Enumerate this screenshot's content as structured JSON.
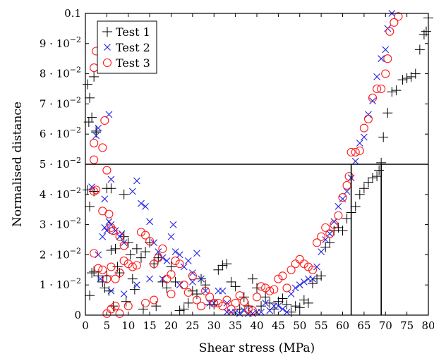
{
  "chart_data": {
    "type": "scatter",
    "xlabel": "Shear stress (MPa)",
    "ylabel": "Normalised distance",
    "xlim": [
      0,
      80
    ],
    "ylim": [
      0,
      0.1
    ],
    "x_ticks": [
      0,
      5,
      10,
      15,
      20,
      25,
      30,
      35,
      40,
      45,
      50,
      55,
      60,
      65,
      70,
      75,
      80
    ],
    "x_tick_labels": [
      "0",
      "5",
      "10",
      "15",
      "20",
      "25",
      "30",
      "35",
      "40",
      "45",
      "50",
      "55",
      "60",
      "65",
      "70",
      "75",
      "80"
    ],
    "y_ticks": [
      0,
      0.01,
      0.02,
      0.03,
      0.04,
      0.05,
      0.06,
      0.07,
      0.08,
      0.09,
      0.1
    ],
    "y_tick_labels": [
      {
        "mantissa": "0",
        "exp": ""
      },
      {
        "mantissa": "1 · 10",
        "exp": "−2"
      },
      {
        "mantissa": "2 · 10",
        "exp": "−2"
      },
      {
        "mantissa": "3 · 10",
        "exp": "−2"
      },
      {
        "mantissa": "4 · 10",
        "exp": "−2"
      },
      {
        "mantissa": "5 · 10",
        "exp": "−2"
      },
      {
        "mantissa": "6 · 10",
        "exp": "−2"
      },
      {
        "mantissa": "7 · 10",
        "exp": "−2"
      },
      {
        "mantissa": "8 · 10",
        "exp": "−2"
      },
      {
        "mantissa": "9 · 10",
        "exp": "−2"
      },
      {
        "mantissa": "0.1",
        "exp": ""
      }
    ],
    "legend_position": "top-left",
    "reference_lines": {
      "horizontal_y": 0.05,
      "vertical_x": [
        62,
        69
      ]
    },
    "series": [
      {
        "name": "Test 1",
        "marker": "plus",
        "color": "#000000",
        "points": [
          [
            0.5,
            0.0765
          ],
          [
            0.8,
            0.064
          ],
          [
            1,
            0.072
          ],
          [
            1.5,
            0.0655
          ],
          [
            2,
            0.079
          ],
          [
            2.5,
            0.061
          ],
          [
            2.5,
            0.0605
          ],
          [
            0.5,
            0.0415
          ],
          [
            1,
            0.036
          ],
          [
            2,
            0.041
          ],
          [
            5,
            0.042
          ],
          [
            6,
            0.042
          ],
          [
            9,
            0.04
          ],
          [
            1,
            0.0065
          ],
          [
            1.5,
            0.014
          ],
          [
            2,
            0.0145
          ],
          [
            3,
            0.013
          ],
          [
            4,
            0.011
          ],
          [
            5,
            0.013
          ],
          [
            4.5,
            0.009
          ],
          [
            5.5,
            0.008
          ],
          [
            6,
            0.0215
          ],
          [
            7,
            0.022
          ],
          [
            7.5,
            0.016
          ],
          [
            8,
            0.014
          ],
          [
            9,
            0.026
          ],
          [
            10,
            0.024
          ],
          [
            10.5,
            0.02
          ],
          [
            11,
            0.012
          ],
          [
            12,
            0.022
          ],
          [
            13,
            0.019
          ],
          [
            14,
            0.021
          ],
          [
            15,
            0.024
          ],
          [
            16,
            0.017
          ],
          [
            17,
            0.019
          ],
          [
            18,
            0.011
          ],
          [
            19,
            0.009
          ],
          [
            20,
            0.016
          ],
          [
            21,
            0.011
          ],
          [
            22,
            0.0015
          ],
          [
            23,
            0.002
          ],
          [
            24,
            0.004
          ],
          [
            25,
            0.008
          ],
          [
            26,
            0.007
          ],
          [
            27,
            0.012
          ],
          [
            28,
            0.01
          ],
          [
            29,
            0.0035
          ],
          [
            30,
            0.0035
          ],
          [
            31,
            0.015
          ],
          [
            32,
            0.0165
          ],
          [
            33,
            0.017
          ],
          [
            34,
            0.011
          ],
          [
            35,
            0.0095
          ],
          [
            36,
            0.002
          ],
          [
            37,
            0.006
          ],
          [
            38,
            0.003
          ],
          [
            39,
            0.012
          ],
          [
            40,
            0.009
          ],
          [
            41,
            0.003
          ],
          [
            42,
            0.006
          ],
          [
            43,
            0.004
          ],
          [
            44,
            0.002
          ],
          [
            45,
            0.0045
          ],
          [
            46,
            0.0055
          ],
          [
            47,
            0.0035
          ],
          [
            48,
            0.001
          ],
          [
            49,
            0.003
          ],
          [
            50,
            0.0025
          ],
          [
            51,
            0.005
          ],
          [
            52,
            0.004
          ],
          [
            53,
            0.0105
          ],
          [
            54,
            0.012
          ],
          [
            55,
            0.013
          ],
          [
            56,
            0.0225
          ],
          [
            57,
            0.024
          ],
          [
            58,
            0.028
          ],
          [
            59,
            0.029
          ],
          [
            60,
            0.028
          ],
          [
            61,
            0.032
          ],
          [
            62,
            0.034
          ],
          [
            63,
            0.036
          ],
          [
            64,
            0.04
          ],
          [
            65,
            0.042
          ],
          [
            66,
            0.044
          ],
          [
            67,
            0.0455
          ],
          [
            68,
            0.046
          ],
          [
            68.5,
            0.048
          ],
          [
            69,
            0.0505
          ],
          [
            69.5,
            0.059
          ],
          [
            70.5,
            0.067
          ],
          [
            71.5,
            0.074
          ],
          [
            72.5,
            0.0745
          ],
          [
            74,
            0.078
          ],
          [
            75,
            0.0785
          ],
          [
            76,
            0.079
          ],
          [
            77,
            0.08
          ],
          [
            78,
            0.088
          ],
          [
            79,
            0.093
          ],
          [
            79.5,
            0.094
          ],
          [
            80,
            0.0985
          ],
          [
            6.5,
            0.003
          ],
          [
            9.5,
            0.0045
          ],
          [
            11.5,
            0.0085
          ],
          [
            13.5,
            0.002
          ],
          [
            16.5,
            0.003
          ]
        ]
      },
      {
        "name": "Test 2",
        "marker": "x",
        "color": "#1f1fe6",
        "points": [
          [
            1.5,
            0.0425
          ],
          [
            2.5,
            0.0595
          ],
          [
            3,
            0.062
          ],
          [
            4.5,
            0.0385
          ],
          [
            5.5,
            0.0665
          ],
          [
            6,
            0.045
          ],
          [
            3,
            0.02
          ],
          [
            4,
            0.026
          ],
          [
            4.5,
            0.029
          ],
          [
            5,
            0.028
          ],
          [
            5.5,
            0.031
          ],
          [
            6,
            0.03
          ],
          [
            7,
            0.028
          ],
          [
            8,
            0.026
          ],
          [
            8.5,
            0.027
          ],
          [
            9,
            0.024
          ],
          [
            11,
            0.041
          ],
          [
            12,
            0.0445
          ],
          [
            13,
            0.037
          ],
          [
            14,
            0.036
          ],
          [
            15,
            0.031
          ],
          [
            16,
            0.024
          ],
          [
            17,
            0.021
          ],
          [
            18,
            0.019
          ],
          [
            19,
            0.018
          ],
          [
            20,
            0.026
          ],
          [
            20.5,
            0.03
          ],
          [
            21,
            0.021
          ],
          [
            22,
            0.02
          ],
          [
            23,
            0.016
          ],
          [
            24,
            0.018
          ],
          [
            25,
            0.014
          ],
          [
            26,
            0.0205
          ],
          [
            27,
            0.012
          ],
          [
            28,
            0.008
          ],
          [
            29,
            0.004
          ],
          [
            30,
            0.004
          ],
          [
            31,
            0.008
          ],
          [
            32,
            0.008
          ],
          [
            33,
            0.004
          ],
          [
            34,
            0.001
          ],
          [
            35,
            0.001
          ],
          [
            36,
            0.0005
          ],
          [
            37,
            0.0015
          ],
          [
            38,
            0.0005
          ],
          [
            39,
            0.0005
          ],
          [
            40,
            0.001
          ],
          [
            41,
            0.001
          ],
          [
            42,
            0.004
          ],
          [
            43,
            0.0015
          ],
          [
            44,
            0.003
          ],
          [
            45,
            0.003
          ],
          [
            46,
            0.002
          ],
          [
            47,
            0.001
          ],
          [
            48,
            0.007
          ],
          [
            49,
            0.009
          ],
          [
            50,
            0.01
          ],
          [
            51,
            0.011
          ],
          [
            52,
            0.012
          ],
          [
            53,
            0.012
          ],
          [
            54,
            0.016
          ],
          [
            55,
            0.021
          ],
          [
            56,
            0.025
          ],
          [
            57,
            0.027
          ],
          [
            58,
            0.031
          ],
          [
            59,
            0.036
          ],
          [
            60,
            0.0385
          ],
          [
            61,
            0.041
          ],
          [
            62,
            0.0455
          ],
          [
            63,
            0.051
          ],
          [
            64,
            0.057
          ],
          [
            65,
            0.059
          ],
          [
            66,
            0.0665
          ],
          [
            67,
            0.071
          ],
          [
            68,
            0.079
          ],
          [
            69,
            0.085
          ],
          [
            70,
            0.088
          ],
          [
            70.5,
            0.095
          ],
          [
            71.5,
            0.1
          ],
          [
            3.5,
            0.012
          ],
          [
            6,
            0.008
          ],
          [
            9,
            0.007
          ],
          [
            12,
            0.01
          ],
          [
            15,
            0.012
          ],
          [
            18,
            0.012
          ],
          [
            22,
            0.01
          ],
          [
            25,
            0.011
          ],
          [
            33,
            0.001
          ]
        ]
      },
      {
        "name": "Test 3",
        "marker": "circle",
        "color": "#ff1a1a",
        "points": [
          [
            2,
            0.082
          ],
          [
            2.5,
            0.0875
          ],
          [
            4,
            0.0555
          ],
          [
            4.5,
            0.0645
          ],
          [
            2,
            0.0515
          ],
          [
            2,
            0.057
          ],
          [
            2,
            0.041
          ],
          [
            2.5,
            0.0415
          ],
          [
            4,
            0.0345
          ],
          [
            5.5,
            0.0335
          ],
          [
            6,
            0.029
          ],
          [
            6.5,
            0.028
          ],
          [
            5,
            0.048
          ],
          [
            8,
            0.026
          ],
          [
            9,
            0.023
          ],
          [
            2,
            0.0205
          ],
          [
            3,
            0.0155
          ],
          [
            4,
            0.015
          ],
          [
            5,
            0.012
          ],
          [
            6,
            0.016
          ],
          [
            7,
            0.012
          ],
          [
            8,
            0.014
          ],
          [
            9,
            0.018
          ],
          [
            10,
            0.017
          ],
          [
            11,
            0.016
          ],
          [
            12,
            0.0165
          ],
          [
            13,
            0.0275
          ],
          [
            14,
            0.0265
          ],
          [
            15,
            0.0245
          ],
          [
            16,
            0.017
          ],
          [
            17,
            0.019
          ],
          [
            18,
            0.022
          ],
          [
            19,
            0.012
          ],
          [
            20,
            0.0135
          ],
          [
            21,
            0.018
          ],
          [
            22,
            0.017
          ],
          [
            23,
            0.01
          ],
          [
            24,
            0.0075
          ],
          [
            25,
            0.013
          ],
          [
            26,
            0.005
          ],
          [
            27,
            0.003
          ],
          [
            28,
            0.008
          ],
          [
            29,
            0.006
          ],
          [
            30,
            0.004
          ],
          [
            31,
            0.004
          ],
          [
            32,
            0.003
          ],
          [
            33,
            0.005
          ],
          [
            34,
            0.002
          ],
          [
            35,
            0.004
          ],
          [
            36,
            0.0065
          ],
          [
            37,
            0.0045
          ],
          [
            38,
            0.002
          ],
          [
            39,
            0.0015
          ],
          [
            40,
            0.006
          ],
          [
            41,
            0.0095
          ],
          [
            42,
            0.009
          ],
          [
            43,
            0.008
          ],
          [
            44,
            0.0085
          ],
          [
            45,
            0.012
          ],
          [
            46,
            0.013
          ],
          [
            47,
            0.009
          ],
          [
            48,
            0.015
          ],
          [
            49,
            0.017
          ],
          [
            50,
            0.0185
          ],
          [
            51,
            0.017
          ],
          [
            52,
            0.016
          ],
          [
            53,
            0.015
          ],
          [
            54,
            0.024
          ],
          [
            55,
            0.026
          ],
          [
            56,
            0.029
          ],
          [
            57,
            0.027
          ],
          [
            58,
            0.03
          ],
          [
            59,
            0.033
          ],
          [
            60,
            0.039
          ],
          [
            61,
            0.043
          ],
          [
            61.5,
            0.046
          ],
          [
            62,
            0.054
          ],
          [
            63,
            0.054
          ],
          [
            64,
            0.0545
          ],
          [
            65,
            0.062
          ],
          [
            66,
            0.065
          ],
          [
            67,
            0.072
          ],
          [
            68,
            0.075
          ],
          [
            69,
            0.075
          ],
          [
            70,
            0.08
          ],
          [
            70.5,
            0.085
          ],
          [
            71,
            0.094
          ],
          [
            72,
            0.097
          ],
          [
            73,
            0.099
          ],
          [
            5,
            0.0005
          ],
          [
            6,
            0.002
          ],
          [
            7,
            0.003
          ],
          [
            8,
            0.0005
          ],
          [
            10,
            0.003
          ],
          [
            14,
            0.004
          ],
          [
            16,
            0.005
          ],
          [
            20,
            0.007
          ]
        ]
      }
    ]
  }
}
